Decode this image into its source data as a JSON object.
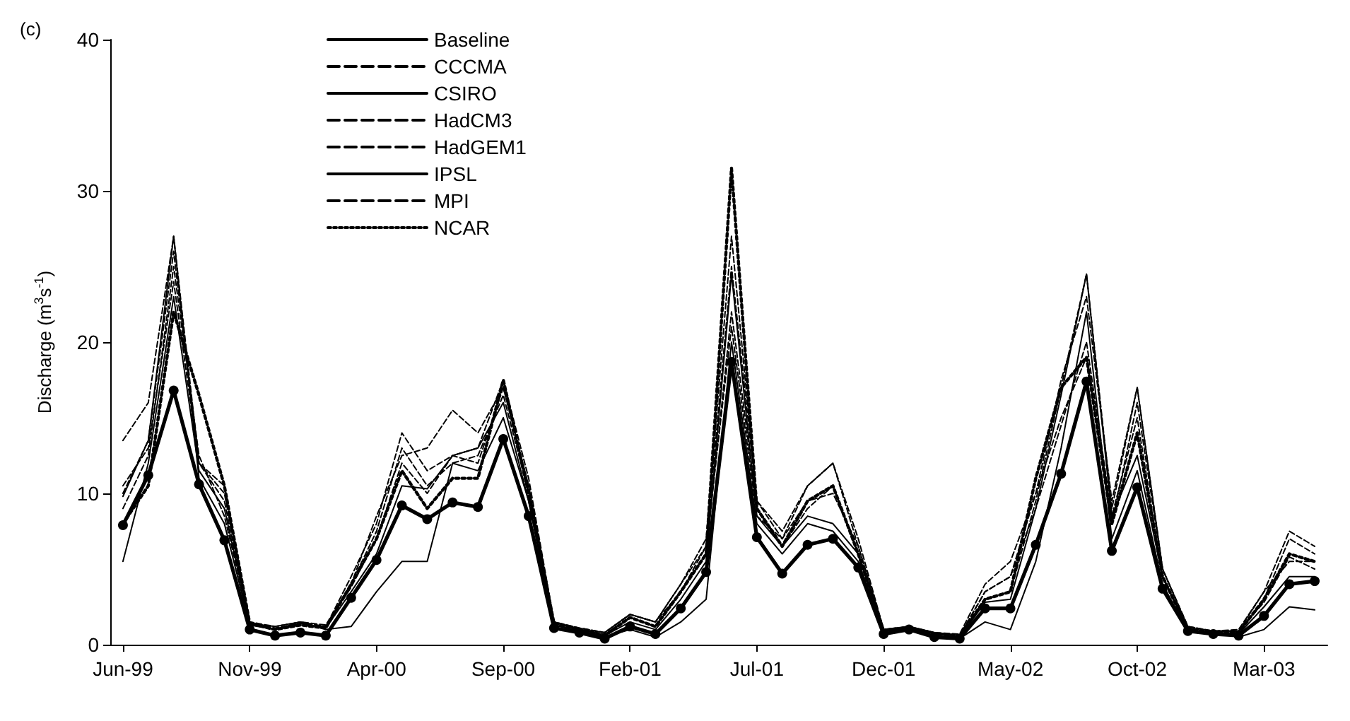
{
  "chart_data": {
    "type": "line",
    "annotations": [
      "(c)"
    ],
    "ylabel": "Discharge (m$^{3}$s$^{-1}$)",
    "categories": [
      "Jun-99",
      null,
      null,
      null,
      null,
      "Nov-99",
      null,
      null,
      null,
      null,
      "Apr-00",
      null,
      null,
      null,
      null,
      "Sep-00",
      null,
      null,
      null,
      null,
      "Feb-01",
      null,
      null,
      null,
      null,
      "Jul-01",
      null,
      null,
      null,
      null,
      "Dec-01",
      null,
      null,
      null,
      null,
      "May-02",
      null,
      null,
      null,
      null,
      "Oct-02",
      null,
      null,
      null,
      null,
      "Mar-03",
      null,
      null
    ],
    "ylim": [
      0,
      40
    ],
    "yticks": [
      0,
      10,
      20,
      30,
      40
    ],
    "grid": false,
    "legend": "top left",
    "series": [
      {
        "name": "Baseline",
        "color": "#000000",
        "marker": "circle",
        "line_style": "solid",
        "values": [
          7.9,
          11.2,
          16.8,
          10.6,
          6.9,
          1.0,
          0.6,
          0.8,
          0.6,
          3.1,
          5.6,
          9.2,
          8.3,
          9.4,
          9.1,
          13.6,
          8.5,
          1.1,
          0.8,
          0.4,
          1.2,
          0.7,
          2.4,
          4.8,
          18.7,
          7.1,
          4.7,
          6.6,
          7.0,
          5.1,
          0.7,
          1.0,
          0.5,
          0.4,
          2.4,
          2.4,
          6.6,
          11.3,
          17.4,
          6.2,
          10.4,
          3.7,
          0.9,
          0.7,
          0.6,
          1.9,
          4.0,
          4.2
        ]
      },
      {
        "name": "CCCMA",
        "color": "#000000",
        "marker": "none",
        "line_style": "dashed",
        "values": [
          9.0,
          12.5,
          25.0,
          12.5,
          8.5,
          1.5,
          1.0,
          1.3,
          1.2,
          4.5,
          8.0,
          14.0,
          11.5,
          12.5,
          12.0,
          17.0,
          10.5,
          1.5,
          1.0,
          0.8,
          2.0,
          1.5,
          4.0,
          6.5,
          21.0,
          8.5,
          7.0,
          9.5,
          10.0,
          6.5,
          1.0,
          1.2,
          0.8,
          0.7,
          4.0,
          5.5,
          10.0,
          15.0,
          19.0,
          8.0,
          16.0,
          5.0,
          1.2,
          0.9,
          1.0,
          3.5,
          7.5,
          6.5
        ]
      },
      {
        "name": "CSIRO",
        "color": "#000000",
        "marker": "none",
        "line_style": "solid",
        "values": [
          5.5,
          12.0,
          23.0,
          11.5,
          9.0,
          1.4,
          1.0,
          1.5,
          1.0,
          1.2,
          3.5,
          5.5,
          5.5,
          12.0,
          11.5,
          15.0,
          9.5,
          1.3,
          0.9,
          0.5,
          1.0,
          0.5,
          1.5,
          3.0,
          20.0,
          8.0,
          6.0,
          8.0,
          7.5,
          5.5,
          0.8,
          1.0,
          0.6,
          0.4,
          1.5,
          1.0,
          5.5,
          13.0,
          22.0,
          7.0,
          11.5,
          4.0,
          0.9,
          0.8,
          0.5,
          1.0,
          2.5,
          2.3
        ]
      },
      {
        "name": "HadCM3",
        "color": "#000000",
        "marker": "none",
        "line_style": "dashed",
        "values": [
          10.0,
          13.5,
          26.0,
          12.0,
          9.5,
          1.4,
          1.2,
          1.5,
          1.3,
          4.0,
          7.5,
          13.0,
          10.5,
          12.0,
          12.5,
          16.5,
          10.0,
          1.5,
          1.0,
          0.7,
          1.8,
          1.2,
          3.5,
          6.0,
          22.0,
          9.0,
          6.5,
          9.0,
          10.5,
          6.0,
          1.0,
          1.1,
          0.8,
          0.6,
          3.5,
          4.5,
          9.0,
          14.5,
          20.0,
          8.5,
          15.0,
          4.5,
          1.1,
          0.9,
          0.9,
          3.0,
          7.0,
          6.0
        ]
      },
      {
        "name": "HadGEM1",
        "color": "#000000",
        "marker": "none",
        "line_style": "dashed",
        "values": [
          10.5,
          13.0,
          24.0,
          12.0,
          10.5,
          1.5,
          1.1,
          1.4,
          1.2,
          3.8,
          7.0,
          12.0,
          10.0,
          12.5,
          13.0,
          17.5,
          11.0,
          1.5,
          1.1,
          0.8,
          2.0,
          1.5,
          3.5,
          6.5,
          25.0,
          9.5,
          7.0,
          10.5,
          12.0,
          6.5,
          1.0,
          1.2,
          0.8,
          0.6,
          3.0,
          3.5,
          9.5,
          17.0,
          24.5,
          9.0,
          17.0,
          5.0,
          1.1,
          0.9,
          0.9,
          2.8,
          5.8,
          5.0
        ]
      },
      {
        "name": "IPSL",
        "color": "#000000",
        "marker": "none",
        "line_style": "solid",
        "values": [
          9.8,
          13.5,
          27.0,
          11.0,
          8.0,
          1.3,
          1.0,
          1.4,
          1.1,
          3.5,
          6.0,
          10.5,
          10.3,
          12.5,
          13.0,
          16.0,
          9.5,
          1.3,
          0.9,
          0.6,
          1.5,
          1.0,
          3.0,
          5.5,
          24.5,
          8.5,
          6.5,
          8.5,
          8.0,
          6.0,
          0.9,
          1.1,
          0.7,
          0.5,
          2.8,
          3.0,
          9.0,
          16.5,
          24.5,
          8.5,
          12.5,
          4.5,
          1.0,
          0.8,
          0.7,
          2.5,
          4.5,
          4.5
        ]
      },
      {
        "name": "MPI",
        "color": "#000000",
        "marker": "none",
        "line_style": "dashed",
        "values": [
          13.5,
          16.0,
          27.0,
          12.0,
          10.0,
          1.5,
          1.2,
          1.5,
          1.2,
          4.0,
          8.5,
          12.5,
          13.0,
          15.5,
          14.0,
          17.0,
          10.5,
          1.5,
          1.1,
          0.8,
          2.0,
          1.5,
          4.0,
          7.0,
          27.0,
          9.5,
          7.5,
          10.5,
          12.0,
          7.0,
          1.0,
          1.2,
          0.8,
          0.6,
          3.5,
          4.5,
          10.0,
          17.5,
          23.0,
          9.5,
          17.0,
          5.0,
          1.2,
          0.9,
          0.9,
          3.5,
          5.5,
          5.5
        ]
      },
      {
        "name": "NCAR",
        "color": "#000000",
        "marker": "none",
        "line_style": "dotted",
        "values": [
          8.0,
          10.5,
          22.0,
          16.5,
          10.5,
          1.4,
          1.0,
          1.3,
          1.1,
          4.0,
          7.0,
          11.5,
          9.0,
          11.0,
          11.0,
          17.5,
          10.0,
          1.4,
          1.0,
          0.6,
          1.8,
          1.2,
          3.5,
          6.0,
          31.5,
          9.0,
          6.5,
          9.5,
          10.5,
          6.0,
          0.9,
          1.1,
          0.7,
          0.6,
          3.0,
          3.5,
          11.0,
          17.0,
          19.0,
          8.0,
          14.0,
          4.5,
          1.0,
          0.8,
          0.8,
          3.0,
          6.0,
          5.5
        ]
      }
    ]
  }
}
